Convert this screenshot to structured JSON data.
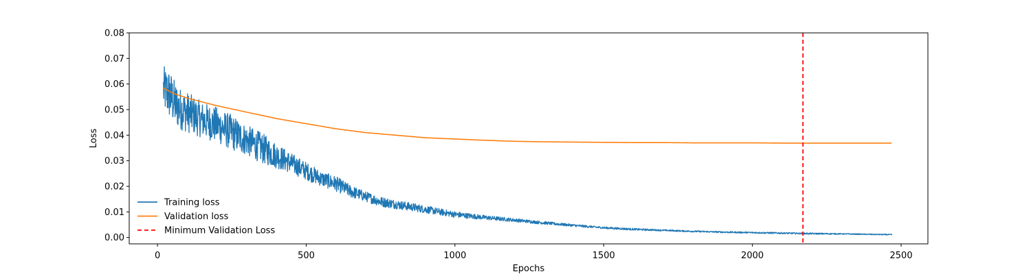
{
  "chart_data": {
    "type": "line",
    "title": "",
    "xlabel": "Epochs",
    "ylabel": "Loss",
    "xlim": [
      -95,
      2590
    ],
    "ylim": [
      -0.0025,
      0.08
    ],
    "xticks": [
      0,
      500,
      1000,
      1500,
      2000,
      2500
    ],
    "xtick_labels": [
      "0",
      "500",
      "1000",
      "1500",
      "2000",
      "2500"
    ],
    "yticks": [
      0.0,
      0.01,
      0.02,
      0.03,
      0.04,
      0.05,
      0.06,
      0.07,
      0.08
    ],
    "ytick_labels": [
      "0.00",
      "0.01",
      "0.02",
      "0.03",
      "0.04",
      "0.05",
      "0.06",
      "0.07",
      "0.08"
    ],
    "grid": false,
    "legend_position": "lower-left",
    "series": [
      {
        "name": "Training loss",
        "color": "#1f77b4",
        "style": "solid",
        "noisy": true,
        "x": [
          20,
          40,
          60,
          80,
          100,
          150,
          200,
          250,
          300,
          350,
          400,
          450,
          500,
          550,
          600,
          650,
          700,
          750,
          800,
          900,
          1000,
          1100,
          1200,
          1300,
          1400,
          1500,
          1600,
          1700,
          1800,
          1900,
          2000,
          2100,
          2200,
          2300,
          2400,
          2470
        ],
        "y": [
          0.058,
          0.056,
          0.052,
          0.05,
          0.049,
          0.046,
          0.044,
          0.041,
          0.038,
          0.035,
          0.032,
          0.029,
          0.026,
          0.023,
          0.021,
          0.018,
          0.016,
          0.014,
          0.013,
          0.011,
          0.009,
          0.0078,
          0.0068,
          0.0057,
          0.0047,
          0.0038,
          0.0032,
          0.0028,
          0.0024,
          0.0021,
          0.0019,
          0.0017,
          0.0015,
          0.0014,
          0.0012,
          0.0011
        ],
        "noise_amplitude": [
          0.009,
          0.01,
          0.009,
          0.008,
          0.008,
          0.007,
          0.007,
          0.007,
          0.006,
          0.006,
          0.005,
          0.004,
          0.0035,
          0.003,
          0.003,
          0.0025,
          0.002,
          0.002,
          0.0018,
          0.0015,
          0.0012,
          0.0009,
          0.0007,
          0.0006,
          0.0005,
          0.0004,
          0.0004,
          0.0003,
          0.0003,
          0.0003,
          0.0003,
          0.0003,
          0.0003,
          0.0002,
          0.0002,
          0.0002
        ]
      },
      {
        "name": "Validation loss",
        "color": "#ff7f0e",
        "style": "solid",
        "x": [
          20,
          50,
          100,
          150,
          200,
          300,
          400,
          500,
          600,
          700,
          800,
          900,
          1000,
          1100,
          1200,
          1300,
          1400,
          1500,
          1600,
          1700,
          1800,
          1900,
          2000,
          2100,
          2200,
          2300,
          2400,
          2470
        ],
        "y": [
          0.0585,
          0.0565,
          0.0545,
          0.053,
          0.0515,
          0.049,
          0.0465,
          0.0445,
          0.0425,
          0.041,
          0.04,
          0.039,
          0.0385,
          0.038,
          0.0376,
          0.0374,
          0.0373,
          0.0372,
          0.0371,
          0.0371,
          0.037,
          0.037,
          0.037,
          0.0369,
          0.0369,
          0.0369,
          0.0369,
          0.0369
        ]
      },
      {
        "name": "Minimum Validation Loss",
        "color": "#ff0000",
        "style": "dashed",
        "vline_x": 2170
      }
    ]
  }
}
